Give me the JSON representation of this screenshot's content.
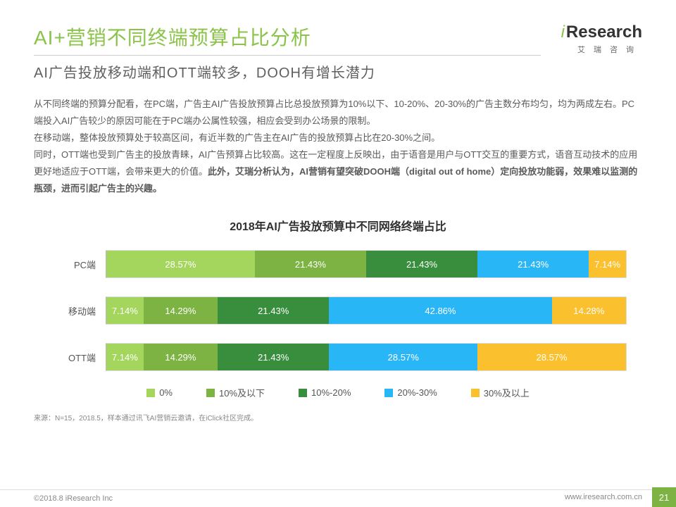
{
  "header": {
    "title": "AI+营销不同终端预算占比分析",
    "subtitle": "AI广告投放移动端和OTT端较多，DOOH有增长潜力",
    "title_color": "#8bc34a",
    "subtitle_color": "#606060"
  },
  "logo": {
    "brand_i": "i",
    "brand_rest": "Research",
    "sub": "艾瑞咨询"
  },
  "body": {
    "p1": "从不同终端的预算分配看，在PC端，广告主AI广告投放预算占比总投放预算为10%以下、10-20%、20-30%的广告主数分布均匀，均为两成左右。PC端投入AI广告较少的原因可能在于PC端办公属性较强，相应会受到办公场景的限制。",
    "p2": "在移动端，整体投放预算处于较高区间，有近半数的广告主在AI广告的投放预算占比在20-30%之间。",
    "p3_plain": "同时，OTT端也受到广告主的投放青睐，AI广告预算占比较高。这在一定程度上反映出，由于语音是用户与OTT交互的重要方式，语音互动技术的应用更好地适应于OTT端，会带来更大的价值。",
    "p3_bold": "此外，艾瑞分析认为，AI营销有望突破DOOH端（digital out of home）定向投放功能弱，效果难以监测的瓶颈，进而引起广告主的兴趣。"
  },
  "chart": {
    "type": "stacked-bar-horizontal",
    "title": "2018年AI广告投放预算中不同网络终端占比",
    "background_color": "#ffffff",
    "border_color": "#dddddd",
    "label_fontsize": 13,
    "value_fontsize": 13,
    "value_color": "#ffffff",
    "categories": [
      "PC端",
      "移动端",
      "OTT端"
    ],
    "series": [
      {
        "name": "0%",
        "color": "#a4d65e"
      },
      {
        "name": "10%及以下",
        "color": "#7cb342"
      },
      {
        "name": "10%-20%",
        "color": "#388e3c"
      },
      {
        "name": "20%-30%",
        "color": "#29b6f6"
      },
      {
        "name": "30%及以上",
        "color": "#fbc02d"
      }
    ],
    "rows": [
      {
        "label": "PC端",
        "values": [
          28.57,
          21.43,
          21.43,
          21.43,
          7.14
        ]
      },
      {
        "label": "移动端",
        "values": [
          7.14,
          14.29,
          21.43,
          42.86,
          14.28
        ]
      },
      {
        "label": "OTT端",
        "values": [
          7.14,
          14.29,
          21.43,
          28.57,
          28.57
        ]
      }
    ],
    "value_suffix": "%"
  },
  "source": "来源：N=15，2018.5，样本通过讯飞AI营销云邀请，在iClick社区完成。",
  "footer": {
    "copyright": "©2018.8 iResearch Inc",
    "url": "www.iresearch.com.cn",
    "page": "21",
    "tab_color": "#7cb342"
  }
}
